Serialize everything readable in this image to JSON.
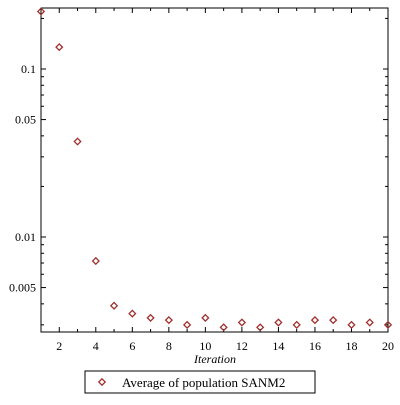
{
  "chart_data": {
    "type": "scatter",
    "title": "",
    "xlabel": "Iteration",
    "ylabel": "",
    "xlim": [
      1,
      20
    ],
    "ylim": [
      0.0025,
      0.23
    ],
    "yscale": "log",
    "grid": false,
    "legend_position": "bottom",
    "xticks": [
      2,
      4,
      6,
      8,
      10,
      12,
      14,
      16,
      18,
      20
    ],
    "xtick_labels": [
      "2",
      "4",
      "6",
      "8",
      "10",
      "12",
      "14",
      "16",
      "18",
      "20"
    ],
    "yticks": [
      0.005,
      0.01,
      0.05,
      0.1
    ],
    "ytick_labels": [
      "0.005",
      "0.01",
      "0.05",
      "0.1"
    ],
    "series": [
      {
        "name": "Average of population SANM2",
        "marker": "diamond",
        "color": "#a0302f",
        "x": [
          1,
          2,
          3,
          4,
          5,
          6,
          7,
          8,
          9,
          10,
          11,
          12,
          13,
          14,
          15,
          16,
          17,
          18,
          19,
          20
        ],
        "y": [
          0.22,
          0.135,
          0.037,
          0.0072,
          0.0039,
          0.0035,
          0.0033,
          0.0032,
          0.003,
          0.0033,
          0.0029,
          0.0031,
          0.0029,
          0.0031,
          0.003,
          0.0032,
          0.0032,
          0.003,
          0.0031,
          0.003
        ]
      }
    ]
  }
}
